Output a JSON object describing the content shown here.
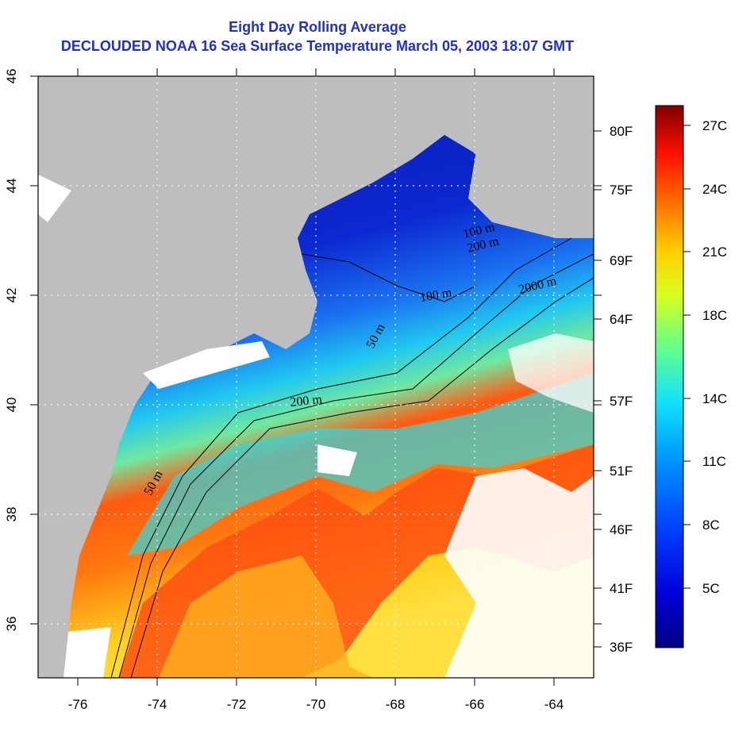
{
  "title": "Eight Day Rolling Average",
  "subtitle": "DECLOUDED NOAA 16 Sea Surface Temperature March 05, 2003 18:07 GMT",
  "lon_ticks": [
    "-76",
    "-74",
    "-72",
    "-70",
    "-68",
    "-66",
    "-64"
  ],
  "lat_ticks": [
    "36",
    "38",
    "40",
    "42",
    "44",
    "46"
  ],
  "right_f_ticks": [
    "80F",
    "75F",
    "69F",
    "64F",
    "57F",
    "51F",
    "46F",
    "41F",
    "36F"
  ],
  "colorbar": {
    "labels": [
      "27C",
      "24C",
      "21C",
      "18C",
      "14C",
      "11C",
      "8C",
      "5C"
    ]
  },
  "contour_labels": [
    {
      "text": "50 m"
    },
    {
      "text": "200 m"
    },
    {
      "text": "200 m"
    },
    {
      "text": "2000 m"
    },
    {
      "text": "100 m"
    },
    {
      "text": "50 m"
    },
    {
      "text": "100 m"
    }
  ],
  "colors": {
    "land": "#bebebe",
    "cloud": "#ffffff",
    "title": "#1f2fd0",
    "cold": "#0a1aa8",
    "warm": "#ff3300"
  }
}
